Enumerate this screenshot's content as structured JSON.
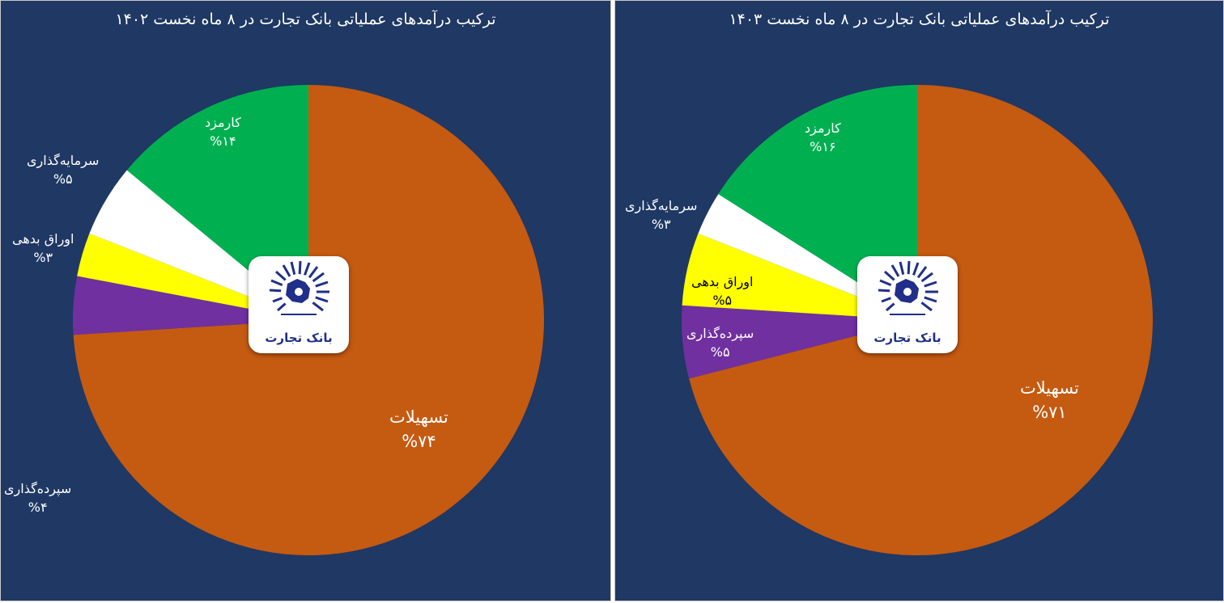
{
  "chart_data": [
    {
      "type": "pie",
      "title": "ترکیب درآمدهای عملیاتی بانک تجارت در ۸ ماه نخست ۱۴۰۲",
      "slices": [
        {
          "label": "تسهیلات",
          "value": 74,
          "value_label": "%۷۴",
          "color": "#c55a11"
        },
        {
          "label": "سپرده‌گذاری",
          "value": 4,
          "value_label": "%۴",
          "color": "#7030a0"
        },
        {
          "label": "اوراق بدهی",
          "value": 3,
          "value_label": "%۳",
          "color": "#ffff00"
        },
        {
          "label": "سرمایه‌گذاری",
          "value": 5,
          "value_label": "%۵",
          "color": "#ffffff"
        },
        {
          "label": "کارمزد",
          "value": 14,
          "value_label": "%۱۴",
          "color": "#00b050"
        }
      ]
    },
    {
      "type": "pie",
      "title": "ترکیب درآمدهای عملیاتی بانک تجارت در ۸ ماه  نخست ۱۴۰۳",
      "slices": [
        {
          "label": "تسهیلات",
          "value": 71,
          "value_label": "%۷۱",
          "color": "#c55a11"
        },
        {
          "label": "سپرده‌گذاری",
          "value": 5,
          "value_label": "%۵",
          "color": "#7030a0"
        },
        {
          "label": "اوراق بدهی",
          "value": 5,
          "value_label": "%۵",
          "color": "#ffff00"
        },
        {
          "label": "سرمایه‌گذاری",
          "value": 3,
          "value_label": "%۳",
          "color": "#ffffff"
        },
        {
          "label": "کارمزد",
          "value": 16,
          "value_label": "%۱۶",
          "color": "#00b050"
        }
      ]
    }
  ],
  "logo": {
    "text": "بانک تجارت",
    "icon": "bank-tejarat-logo-icon"
  },
  "colors": {
    "background": "#1f3864",
    "title_text": "#ffffff",
    "logo_text": "#1f2f8a"
  }
}
